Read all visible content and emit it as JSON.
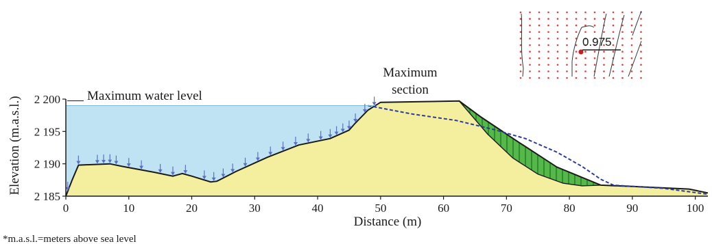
{
  "colors": {
    "water": "#bfe3f2",
    "soil": "#f4ef9e",
    "slip_mass": "#56b848",
    "slip_hatch": "#1f7a28",
    "seepage_arrows": "#5b6fc9",
    "phreatic_line": "#2a3a9e",
    "inset_grid_dots": "#e23b3b",
    "inset_center_point": "#c81e1e",
    "outline": "#1a1a1a"
  },
  "icons": {
    "seepage_arrow": "down-arrow-icon",
    "inset_marker": "red-dot-icon"
  },
  "labels": {
    "max_water_level": "Maximum water level",
    "max_section_line1": "Maximum",
    "max_section_line2": "section",
    "inset_value": "0.975",
    "footnote": "*m.a.s.l.=meters above sea level"
  },
  "axes": {
    "x": {
      "title": "Distance (m)",
      "ticks": [
        "0",
        "10",
        "20",
        "30",
        "40",
        "50",
        "60",
        "70",
        "80",
        "90",
        "100"
      ],
      "range": [
        0,
        102
      ]
    },
    "y": {
      "title": "Elevation (m.a.s.l.)",
      "ticks": [
        "2 185",
        "2 190",
        "2 195",
        "2 200"
      ],
      "range": [
        2185,
        2200
      ]
    }
  },
  "profile": {
    "water_level_elevation": 2199,
    "ground_surface": [
      [
        0,
        2185
      ],
      [
        1,
        2187.5
      ],
      [
        2,
        2189.8
      ],
      [
        7,
        2190
      ],
      [
        9,
        2189.6
      ],
      [
        14,
        2188.7
      ],
      [
        17,
        2188.1
      ],
      [
        18.5,
        2188.5
      ],
      [
        20,
        2188.1
      ],
      [
        23,
        2187.2
      ],
      [
        24,
        2187.3
      ],
      [
        27,
        2188.8
      ],
      [
        32,
        2191
      ],
      [
        37,
        2192.9
      ],
      [
        42,
        2193.9
      ],
      [
        45,
        2195.2
      ],
      [
        46,
        2196.3
      ],
      [
        48,
        2198.3
      ],
      [
        50,
        2199.5
      ],
      [
        62.5,
        2199.7
      ],
      [
        66,
        2197.2
      ],
      [
        72,
        2193.3
      ],
      [
        78,
        2189.5
      ],
      [
        85,
        2186.7
      ],
      [
        90,
        2186.5
      ],
      [
        99,
        2186.1
      ],
      [
        102,
        2185.5
      ]
    ],
    "phreatic_line": [
      [
        48,
        2199
      ],
      [
        55,
        2197.7
      ],
      [
        62,
        2196.7
      ],
      [
        68,
        2195.3
      ],
      [
        73,
        2193.9
      ],
      [
        78,
        2191.8
      ],
      [
        82,
        2189.6
      ],
      [
        85,
        2187.6
      ],
      [
        87,
        2186.7
      ],
      [
        95,
        2186.2
      ],
      [
        102,
        2185.3
      ]
    ],
    "slip_surface": [
      [
        62.5,
        2199.7
      ],
      [
        67,
        2194.6
      ],
      [
        71,
        2190.9
      ],
      [
        75,
        2188.4
      ],
      [
        79,
        2187
      ],
      [
        82,
        2186.6
      ],
      [
        85,
        2186.7
      ]
    ],
    "seepage_arrow_stations": [
      0.3,
      2,
      5,
      6,
      7,
      8,
      10,
      12,
      15,
      17,
      19,
      22,
      23.5,
      25,
      26.5,
      28.5,
      30.5,
      32.5,
      34.5,
      36.5,
      38.5,
      40.5,
      42,
      43,
      44,
      45,
      46,
      47.5,
      49
    ]
  },
  "inset": {
    "panel_grid": "visible",
    "contour_lines": "visible"
  }
}
